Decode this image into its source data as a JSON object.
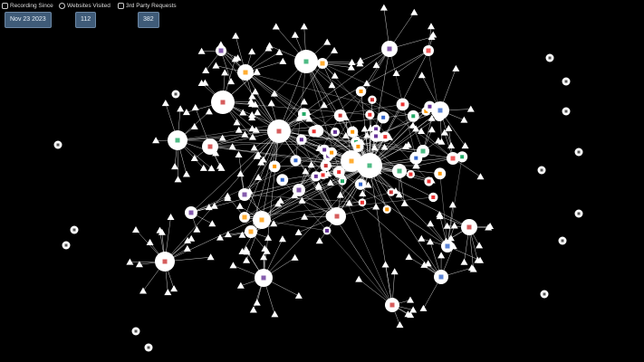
{
  "header": {
    "recording_since": {
      "label": "Recording Since",
      "value": "Nov 23 2023",
      "icon": "camera-icon"
    },
    "websites_visited": {
      "label": "Websites Visited",
      "value": "112",
      "icon": "globe-icon"
    },
    "third_party_requests": {
      "label": "3rd Party Requests",
      "value": "382",
      "icon": "spy-icon"
    }
  },
  "colors": {
    "background": "#000000",
    "badge": "#3f5b78",
    "node": "#ffffff",
    "edge": "#ffffff"
  }
}
